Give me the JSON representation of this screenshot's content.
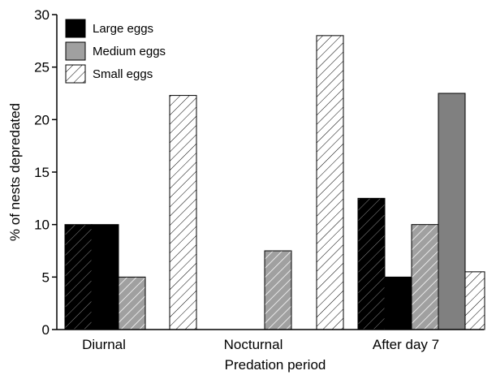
{
  "chart_data": {
    "type": "bar",
    "title": "",
    "xlabel": "Predation period",
    "ylabel": "% of nests depredated",
    "ylim": [
      0,
      30
    ],
    "yticks": [
      0,
      5,
      10,
      15,
      20,
      25,
      30
    ],
    "categories": [
      "Diurnal",
      "Nocturnal",
      "After day 7"
    ],
    "legend_position": "top-left",
    "series": [
      {
        "name": "Large eggs",
        "fill": "#000000",
        "values": [
          10,
          0,
          5
        ]
      },
      {
        "name": "Medium eggs",
        "fill": "#a0a0a0",
        "values": [
          5,
          7.5,
          22.5
        ]
      },
      {
        "name": "Small eggs",
        "fill": "#ffffff",
        "values": [
          22.3,
          28,
          5.5
        ]
      }
    ],
    "extra_bars": [
      {
        "category": "Diurnal",
        "value": 10,
        "fill": "#000000",
        "hatched": true
      },
      {
        "category": "After day 7",
        "value": 12.5,
        "fill": "#000000",
        "hatched": true
      },
      {
        "category": "After day 7",
        "value": 10,
        "fill": "#a0a0a0",
        "hatched": true
      }
    ],
    "grid": false
  }
}
